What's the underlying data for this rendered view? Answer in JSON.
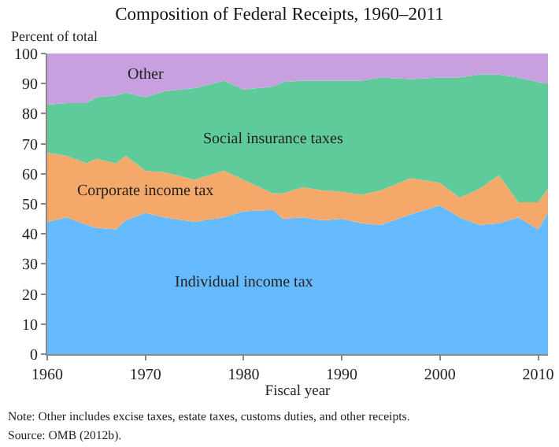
{
  "chart_data": {
    "type": "area",
    "stacked": true,
    "title": "Composition of Federal Receipts, 1960–2011",
    "ylabel": "Percent of total",
    "xlabel": "Fiscal year",
    "x": [
      1960,
      1962,
      1964,
      1965,
      1967,
      1968,
      1970,
      1972,
      1975,
      1978,
      1980,
      1983,
      1984,
      1986,
      1988,
      1990,
      1992,
      1994,
      1997,
      2000,
      2002,
      2004,
      2006,
      2008,
      2010,
      2011
    ],
    "series": [
      {
        "name": "Individual income tax",
        "color": "#66bbff",
        "values": [
          44,
          45.5,
          43,
          42,
          41.5,
          44.5,
          47,
          45.5,
          44,
          45.5,
          47.5,
          48,
          45,
          45.5,
          44.5,
          45,
          43.5,
          43,
          46.5,
          49.5,
          45.5,
          43,
          43.5,
          45.5,
          41.5,
          47
        ]
      },
      {
        "name": "Corporate income tax",
        "color": "#f4a96a",
        "values": [
          23,
          20.5,
          20.5,
          23,
          22,
          21.5,
          14,
          15,
          14,
          15.5,
          10.5,
          5.5,
          8.5,
          10,
          10,
          9,
          9.5,
          11.5,
          12,
          7.5,
          6.5,
          12,
          16,
          5,
          9,
          8
        ]
      },
      {
        "name": "Social insurance taxes",
        "color": "#5fcb9a",
        "values": [
          16,
          17.5,
          20,
          20.5,
          22.5,
          21,
          24.5,
          27,
          30.5,
          30,
          30,
          35.5,
          37,
          35.5,
          36.5,
          37,
          38,
          37.5,
          33,
          35,
          40,
          38,
          33.5,
          41.5,
          40,
          35
        ]
      },
      {
        "name": "Other",
        "color": "#c8a0e0",
        "values": [
          17,
          16.5,
          16.5,
          14.5,
          14,
          13,
          14.5,
          12.5,
          11.5,
          9,
          12,
          11,
          9.5,
          9,
          9,
          9,
          9,
          8,
          8.5,
          8,
          8,
          7,
          7,
          8,
          9.5,
          10
        ]
      }
    ],
    "xlim": [
      1960,
      2011
    ],
    "xticks": [
      1960,
      1970,
      1980,
      1990,
      2000,
      2010
    ],
    "ylim": [
      0,
      100
    ],
    "yticks": [
      0,
      10,
      20,
      30,
      40,
      50,
      60,
      70,
      80,
      90,
      100
    ],
    "legend": false,
    "annotations": [
      "Note: Other includes excise taxes, estate taxes, customs duties, and other receipts.",
      "Source: OMB (2012b)."
    ]
  }
}
